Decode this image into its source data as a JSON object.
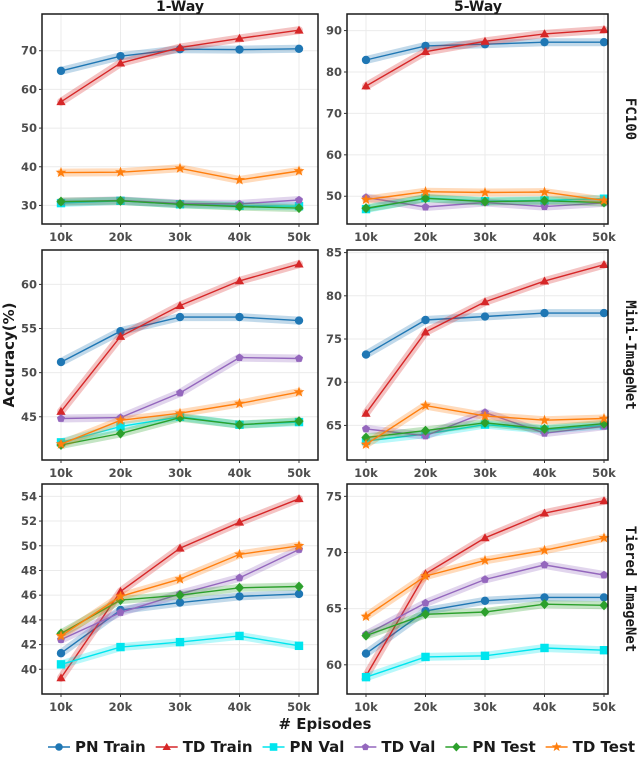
{
  "chart_data": {
    "type": "line",
    "layout": "facet-grid 3 rows x 2 columns",
    "xlabel": "# Episodes",
    "ylabel": "Accuracy(%)",
    "x": [
      "10k",
      "20k",
      "30k",
      "40k",
      "50k"
    ],
    "column_titles": [
      "1-Way",
      "5-Way"
    ],
    "row_titles": [
      "FC100",
      "Mini-ImageNet",
      "Tiered ImageNet"
    ],
    "legend_position": "bottom",
    "grid": true,
    "series_styles": [
      {
        "name": "PN Train",
        "color": "#1f77b4",
        "marker": "circle"
      },
      {
        "name": "TD Train",
        "color": "#d62728",
        "marker": "triangle"
      },
      {
        "name": "PN Val",
        "color": "#00e5ee",
        "marker": "square"
      },
      {
        "name": "TD Val",
        "color": "#9467bd",
        "marker": "pentagon"
      },
      {
        "name": "PN Test",
        "color": "#2ca02c",
        "marker": "diamond"
      },
      {
        "name": "TD Test",
        "color": "#ff7f0e",
        "marker": "star"
      }
    ],
    "panels": [
      {
        "row": "FC100",
        "col": "1-Way",
        "yticks": [
          30,
          40,
          50,
          60,
          70
        ],
        "ylim": [
          25.2,
          79.5
        ],
        "series": [
          {
            "name": "PN Train",
            "values": [
              64.8,
              68.6,
              70.4,
              70.3,
              70.5
            ]
          },
          {
            "name": "TD Train",
            "values": [
              56.8,
              66.8,
              70.8,
              73.2,
              75.3
            ]
          },
          {
            "name": "PN Val",
            "values": [
              30.6,
              31.2,
              30.3,
              29.9,
              29.8
            ]
          },
          {
            "name": "TD Val",
            "values": [
              31.0,
              31.3,
              30.5,
              30.4,
              31.4
            ]
          },
          {
            "name": "PN Test",
            "values": [
              31.0,
              31.2,
              30.3,
              29.7,
              29.3
            ]
          },
          {
            "name": "TD Test",
            "values": [
              38.5,
              38.6,
              39.6,
              36.6,
              38.9
            ]
          }
        ]
      },
      {
        "row": "FC100",
        "col": "5-Way",
        "yticks": [
          50,
          60,
          70,
          80,
          90
        ],
        "ylim": [
          43.3,
          94.0
        ],
        "series": [
          {
            "name": "PN Train",
            "values": [
              82.9,
              86.3,
              86.7,
              87.2,
              87.2
            ]
          },
          {
            "name": "TD Train",
            "values": [
              76.6,
              84.9,
              87.4,
              89.2,
              90.2
            ]
          },
          {
            "name": "PN Val",
            "values": [
              46.9,
              49.6,
              48.8,
              49.0,
              49.4
            ]
          },
          {
            "name": "TD Val",
            "values": [
              49.7,
              47.4,
              48.5,
              47.5,
              48.4
            ]
          },
          {
            "name": "PN Test",
            "values": [
              47.1,
              49.5,
              48.7,
              48.9,
              48.5
            ]
          },
          {
            "name": "TD Test",
            "values": [
              49.2,
              51.1,
              50.9,
              51.0,
              49.0
            ]
          }
        ]
      },
      {
        "row": "Mini-ImageNet",
        "col": "1-Way",
        "yticks": [
          45,
          50,
          55,
          60
        ],
        "ylim": [
          40.1,
          63.9
        ],
        "series": [
          {
            "name": "PN Train",
            "values": [
              51.2,
              54.7,
              56.3,
              56.3,
              55.9
            ]
          },
          {
            "name": "TD Train",
            "values": [
              45.6,
              54.1,
              57.6,
              60.4,
              62.3
            ]
          },
          {
            "name": "PN Val",
            "values": [
              42.1,
              43.9,
              45.0,
              44.1,
              44.4
            ]
          },
          {
            "name": "TD Val",
            "values": [
              44.8,
              44.9,
              47.7,
              51.7,
              51.6
            ]
          },
          {
            "name": "PN Test",
            "values": [
              41.8,
              43.1,
              44.9,
              44.1,
              44.5
            ]
          },
          {
            "name": "TD Test",
            "values": [
              41.9,
              44.6,
              45.4,
              46.5,
              47.8
            ]
          }
        ]
      },
      {
        "row": "Mini-ImageNet",
        "col": "5-Way",
        "yticks": [
          65,
          70,
          75,
          80,
          85
        ],
        "ylim": [
          61.0,
          85.3
        ],
        "series": [
          {
            "name": "PN Train",
            "values": [
              73.2,
              77.2,
              77.6,
              78.0,
              78.0
            ]
          },
          {
            "name": "TD Train",
            "values": [
              66.4,
              75.8,
              79.3,
              81.7,
              83.6
            ]
          },
          {
            "name": "PN Val",
            "values": [
              63.2,
              64.0,
              65.1,
              64.5,
              65.0
            ]
          },
          {
            "name": "TD Val",
            "values": [
              64.6,
              63.8,
              66.5,
              64.1,
              64.9
            ]
          },
          {
            "name": "PN Test",
            "values": [
              63.6,
              64.4,
              65.3,
              64.6,
              65.2
            ]
          },
          {
            "name": "TD Test",
            "values": [
              62.8,
              67.3,
              66.1,
              65.6,
              65.8
            ]
          }
        ]
      },
      {
        "row": "Tiered ImageNet",
        "col": "1-Way",
        "yticks": [
          40,
          42,
          44,
          46,
          48,
          50,
          52,
          54
        ],
        "ylim": [
          38.0,
          55.0
        ],
        "series": [
          {
            "name": "PN Train",
            "values": [
              41.3,
              44.8,
              45.4,
              45.9,
              46.1
            ]
          },
          {
            "name": "TD Train",
            "values": [
              39.3,
              46.3,
              49.8,
              51.9,
              53.8
            ]
          },
          {
            "name": "PN Val",
            "values": [
              40.4,
              41.8,
              42.2,
              42.7,
              41.9
            ]
          },
          {
            "name": "TD Val",
            "values": [
              42.4,
              44.6,
              46.1,
              47.4,
              49.7
            ]
          },
          {
            "name": "PN Test",
            "values": [
              42.9,
              45.6,
              46.0,
              46.6,
              46.7
            ]
          },
          {
            "name": "TD Test",
            "values": [
              42.7,
              45.9,
              47.3,
              49.3,
              50.0
            ]
          }
        ]
      },
      {
        "row": "Tiered ImageNet",
        "col": "5-Way",
        "yticks": [
          60,
          65,
          70,
          75
        ],
        "ylim": [
          57.4,
          76.1
        ],
        "series": [
          {
            "name": "PN Train",
            "values": [
              61.0,
              64.8,
              65.7,
              66.0,
              66.0
            ]
          },
          {
            "name": "TD Train",
            "values": [
              59.0,
              68.1,
              71.3,
              73.5,
              74.6
            ]
          },
          {
            "name": "PN Val",
            "values": [
              58.9,
              60.7,
              60.8,
              61.5,
              61.3
            ]
          },
          {
            "name": "TD Val",
            "values": [
              62.7,
              65.5,
              67.6,
              68.9,
              68.0
            ]
          },
          {
            "name": "PN Test",
            "values": [
              62.6,
              64.5,
              64.7,
              65.4,
              65.3
            ]
          },
          {
            "name": "TD Test",
            "values": [
              64.3,
              67.9,
              69.3,
              70.2,
              71.3
            ]
          }
        ]
      }
    ]
  }
}
